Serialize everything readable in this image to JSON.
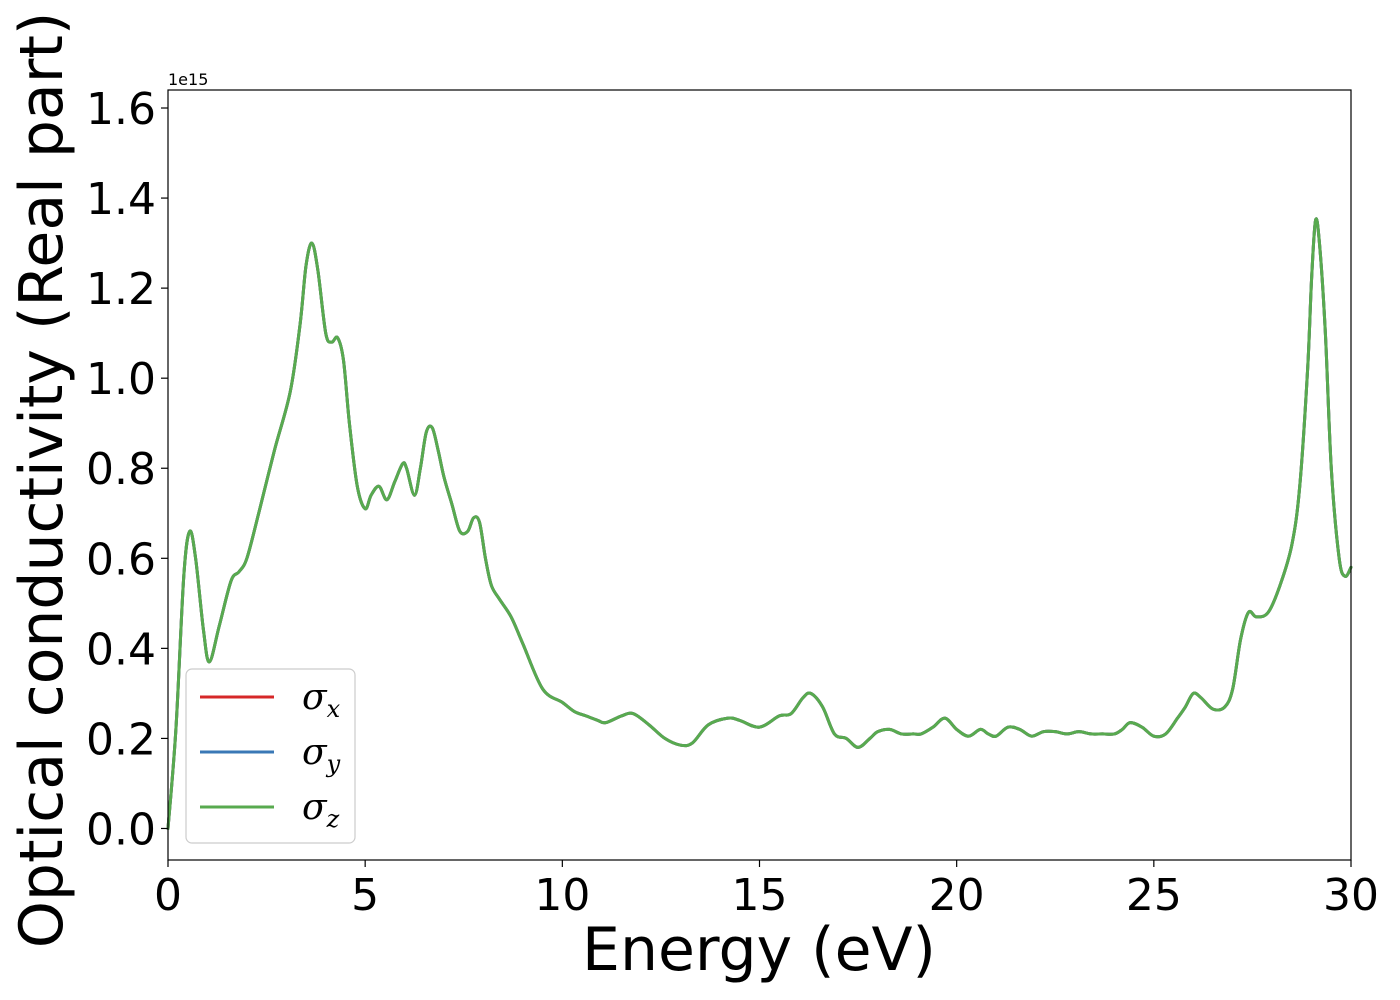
{
  "chart_data": {
    "type": "line",
    "xlabel": "Energy (eV)",
    "ylabel": "Optical conductivity (Real part)",
    "y_offset_text": "1e15",
    "y_scale": 1000000000000000.0,
    "xlim": [
      0,
      30
    ],
    "ylim": [
      -0.07,
      1.64
    ],
    "xticks": [
      0,
      5,
      10,
      15,
      20,
      25,
      30
    ],
    "xtick_labels": [
      "0",
      "5",
      "10",
      "15",
      "20",
      "25",
      "30"
    ],
    "yticks": [
      0.0,
      0.2,
      0.4,
      0.6,
      0.8,
      1.0,
      1.2,
      1.4,
      1.6
    ],
    "ytick_labels": [
      "0.0",
      "0.2",
      "0.4",
      "0.6",
      "0.8",
      "1.0",
      "1.2",
      "1.4",
      "1.6"
    ],
    "grid": false,
    "legend_position": "lower-left",
    "x": [
      0,
      0.2,
      0.4,
      0.55,
      0.7,
      0.9,
      1.05,
      1.3,
      1.6,
      1.8,
      2.0,
      2.3,
      2.7,
      3.1,
      3.35,
      3.5,
      3.65,
      3.8,
      4.0,
      4.15,
      4.3,
      4.45,
      4.6,
      4.8,
      5.0,
      5.15,
      5.35,
      5.55,
      5.75,
      5.95,
      6.05,
      6.25,
      6.4,
      6.55,
      6.7,
      6.85,
      7.0,
      7.2,
      7.4,
      7.6,
      7.75,
      7.9,
      8.05,
      8.2,
      8.4,
      8.7,
      9.0,
      9.5,
      10.0,
      10.3,
      10.6,
      10.9,
      11.1,
      11.5,
      11.8,
      12.2,
      12.6,
      13.0,
      13.3,
      13.7,
      14.2,
      14.5,
      15.0,
      15.5,
      15.8,
      16.1,
      16.3,
      16.6,
      16.9,
      17.2,
      17.5,
      17.8,
      18.0,
      18.3,
      18.6,
      18.9,
      19.1,
      19.4,
      19.7,
      20.0,
      20.3,
      20.6,
      20.8,
      21.0,
      21.3,
      21.6,
      21.9,
      22.2,
      22.5,
      22.8,
      23.1,
      23.4,
      23.7,
      24.0,
      24.2,
      24.4,
      24.7,
      25.0,
      25.3,
      25.6,
      25.8,
      26.0,
      26.2,
      26.5,
      26.8,
      27.0,
      27.2,
      27.4,
      27.6,
      27.9,
      28.2,
      28.5,
      28.7,
      28.9,
      29.0,
      29.1,
      29.2,
      29.35,
      29.5,
      29.7,
      29.85,
      30.0
    ],
    "series": [
      {
        "name": "σ_x",
        "color": "#d62728",
        "y": [
          0.0,
          0.22,
          0.56,
          0.66,
          0.6,
          0.44,
          0.37,
          0.45,
          0.55,
          0.57,
          0.6,
          0.7,
          0.84,
          0.97,
          1.12,
          1.25,
          1.3,
          1.24,
          1.1,
          1.08,
          1.09,
          1.04,
          0.9,
          0.76,
          0.71,
          0.74,
          0.76,
          0.73,
          0.77,
          0.81,
          0.8,
          0.74,
          0.8,
          0.88,
          0.89,
          0.84,
          0.78,
          0.72,
          0.66,
          0.66,
          0.69,
          0.68,
          0.6,
          0.54,
          0.51,
          0.47,
          0.41,
          0.31,
          0.28,
          0.26,
          0.25,
          0.24,
          0.235,
          0.25,
          0.255,
          0.23,
          0.2,
          0.185,
          0.19,
          0.23,
          0.245,
          0.24,
          0.225,
          0.25,
          0.255,
          0.29,
          0.3,
          0.27,
          0.21,
          0.2,
          0.18,
          0.2,
          0.215,
          0.22,
          0.21,
          0.21,
          0.21,
          0.225,
          0.245,
          0.22,
          0.205,
          0.22,
          0.21,
          0.205,
          0.225,
          0.22,
          0.205,
          0.215,
          0.215,
          0.21,
          0.215,
          0.21,
          0.21,
          0.21,
          0.22,
          0.235,
          0.225,
          0.205,
          0.21,
          0.245,
          0.27,
          0.3,
          0.29,
          0.265,
          0.27,
          0.31,
          0.42,
          0.48,
          0.47,
          0.48,
          0.54,
          0.63,
          0.76,
          1.02,
          1.22,
          1.35,
          1.3,
          1.1,
          0.8,
          0.6,
          0.56,
          0.58
        ]
      },
      {
        "name": "σ_y",
        "color": "#3a78b6",
        "y": [
          0.0,
          0.22,
          0.56,
          0.66,
          0.6,
          0.44,
          0.37,
          0.45,
          0.55,
          0.57,
          0.6,
          0.7,
          0.84,
          0.97,
          1.12,
          1.25,
          1.3,
          1.24,
          1.1,
          1.08,
          1.09,
          1.04,
          0.9,
          0.76,
          0.71,
          0.74,
          0.76,
          0.73,
          0.77,
          0.81,
          0.8,
          0.74,
          0.8,
          0.88,
          0.89,
          0.84,
          0.78,
          0.72,
          0.66,
          0.66,
          0.69,
          0.68,
          0.6,
          0.54,
          0.51,
          0.47,
          0.41,
          0.31,
          0.28,
          0.26,
          0.25,
          0.24,
          0.235,
          0.25,
          0.255,
          0.23,
          0.2,
          0.185,
          0.19,
          0.23,
          0.245,
          0.24,
          0.225,
          0.25,
          0.255,
          0.29,
          0.3,
          0.27,
          0.21,
          0.2,
          0.18,
          0.2,
          0.215,
          0.22,
          0.21,
          0.21,
          0.21,
          0.225,
          0.245,
          0.22,
          0.205,
          0.22,
          0.21,
          0.205,
          0.225,
          0.22,
          0.205,
          0.215,
          0.215,
          0.21,
          0.215,
          0.21,
          0.21,
          0.21,
          0.22,
          0.235,
          0.225,
          0.205,
          0.21,
          0.245,
          0.27,
          0.3,
          0.29,
          0.265,
          0.27,
          0.31,
          0.42,
          0.48,
          0.47,
          0.48,
          0.54,
          0.63,
          0.76,
          1.02,
          1.22,
          1.35,
          1.3,
          1.1,
          0.8,
          0.6,
          0.56,
          0.58
        ]
      },
      {
        "name": "σ_z",
        "color": "#58aa4f",
        "y": [
          0.0,
          0.22,
          0.56,
          0.66,
          0.6,
          0.44,
          0.37,
          0.45,
          0.55,
          0.57,
          0.6,
          0.7,
          0.84,
          0.97,
          1.12,
          1.25,
          1.3,
          1.24,
          1.1,
          1.08,
          1.09,
          1.04,
          0.9,
          0.76,
          0.71,
          0.74,
          0.76,
          0.73,
          0.77,
          0.81,
          0.8,
          0.74,
          0.8,
          0.88,
          0.89,
          0.84,
          0.78,
          0.72,
          0.66,
          0.66,
          0.69,
          0.68,
          0.6,
          0.54,
          0.51,
          0.47,
          0.41,
          0.31,
          0.28,
          0.26,
          0.25,
          0.24,
          0.235,
          0.25,
          0.255,
          0.23,
          0.2,
          0.185,
          0.19,
          0.23,
          0.245,
          0.24,
          0.225,
          0.25,
          0.255,
          0.29,
          0.3,
          0.27,
          0.21,
          0.2,
          0.18,
          0.2,
          0.215,
          0.22,
          0.21,
          0.21,
          0.21,
          0.225,
          0.245,
          0.22,
          0.205,
          0.22,
          0.21,
          0.205,
          0.225,
          0.22,
          0.205,
          0.215,
          0.215,
          0.21,
          0.215,
          0.21,
          0.21,
          0.21,
          0.22,
          0.235,
          0.225,
          0.205,
          0.21,
          0.245,
          0.27,
          0.3,
          0.29,
          0.265,
          0.27,
          0.31,
          0.42,
          0.48,
          0.47,
          0.48,
          0.54,
          0.63,
          0.76,
          1.02,
          1.22,
          1.35,
          1.3,
          1.1,
          0.8,
          0.6,
          0.56,
          0.58
        ]
      }
    ],
    "legend": [
      {
        "symbol": "σ",
        "sub": "x",
        "color": "#d62728"
      },
      {
        "symbol": "σ",
        "sub": "y",
        "color": "#3a78b6"
      },
      {
        "symbol": "σ",
        "sub": "z",
        "color": "#58aa4f"
      }
    ]
  }
}
